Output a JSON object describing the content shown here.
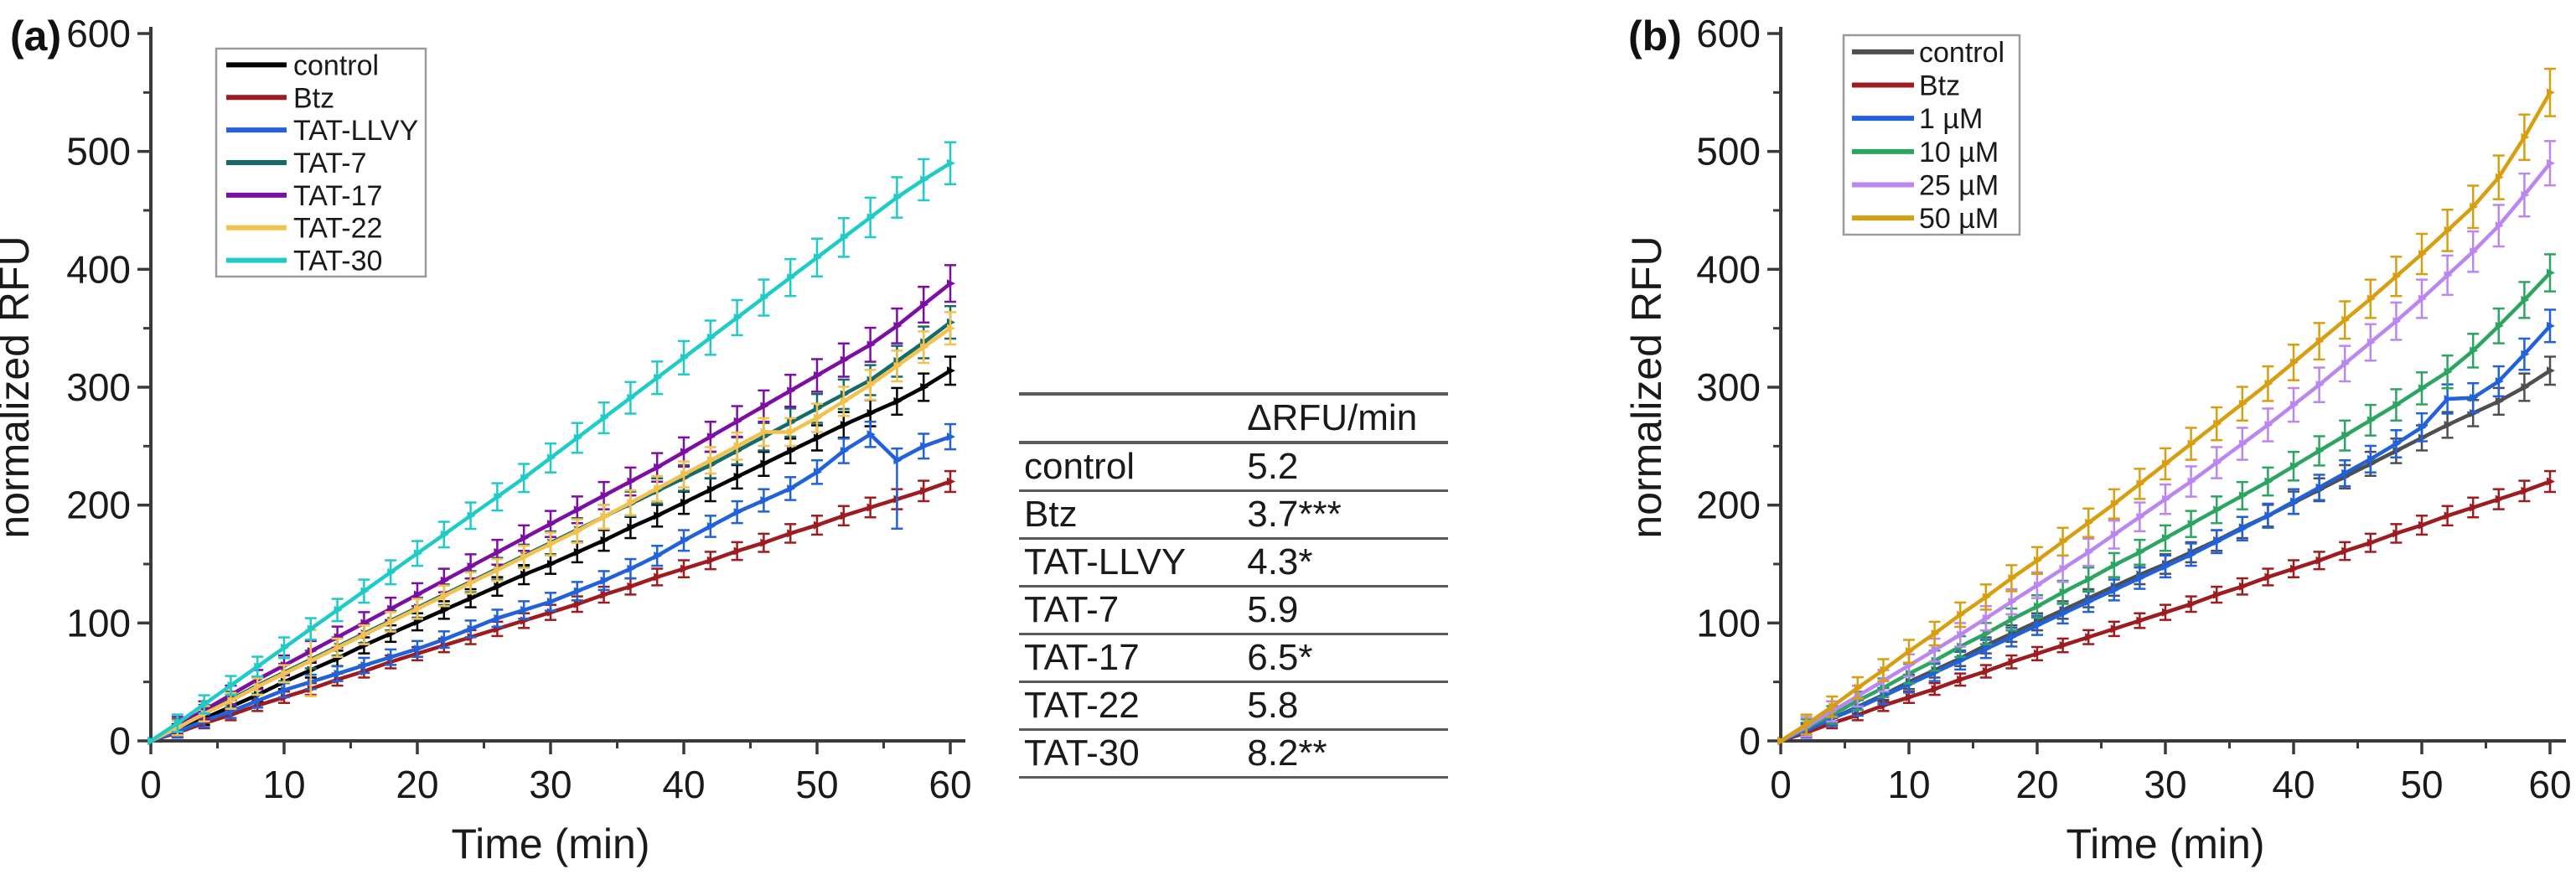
{
  "style": {
    "background": "#ffffff",
    "axis_color": "#3a3a3a",
    "text_color": "#1a1a1a",
    "legend_border": "#9a9a9a",
    "table_line_color": "#5a5a5a",
    "table_header_bg": "#e4e4e4"
  },
  "table": {
    "header": [
      "",
      "ΔRFU/min"
    ],
    "rows": [
      [
        "control",
        "5.2"
      ],
      [
        "Btz",
        "3.7***"
      ],
      [
        "TAT-LLVY",
        "4.3*"
      ],
      [
        "TAT-7",
        "5.9"
      ],
      [
        "TAT-17",
        "6.5*"
      ],
      [
        "TAT-22",
        "5.8"
      ],
      [
        "TAT-30",
        "8.2**"
      ]
    ]
  },
  "chart_data": [
    {
      "type": "line",
      "panel_label": "(a)",
      "title": "",
      "xlabel": "Time (min)",
      "ylabel": "normalized RFU",
      "xlim": [
        0,
        60
      ],
      "ylim": [
        0,
        600
      ],
      "x_ticks": [
        0,
        10,
        20,
        30,
        40,
        50,
        60
      ],
      "y_ticks": [
        0,
        100,
        200,
        300,
        400,
        500,
        600
      ],
      "x_minor_ticks": [
        5,
        15,
        25,
        35,
        45,
        55
      ],
      "y_minor_ticks": [
        50,
        150,
        250,
        350,
        450,
        550
      ],
      "grid": false,
      "legend_position": "top-left-inside",
      "x": [
        0,
        2,
        4,
        6,
        8,
        10,
        12,
        14,
        16,
        18,
        20,
        22,
        24,
        26,
        28,
        30,
        32,
        34,
        36,
        38,
        40,
        42,
        44,
        46,
        48,
        50,
        52,
        54,
        56,
        58,
        60
      ],
      "series": [
        {
          "name": "control",
          "color": "#000000",
          "err_base": 5,
          "values": [
            0,
            9,
            19,
            29,
            39,
            50,
            60,
            70,
            81,
            91,
            101,
            111,
            121,
            131,
            141,
            150,
            160,
            170,
            181,
            191,
            202,
            213,
            224,
            235,
            246,
            257,
            268,
            278,
            288,
            300,
            314
          ]
        },
        {
          "name": "Btz",
          "color": "#9e1c20",
          "err_base": 4,
          "values": [
            0,
            7,
            15,
            22,
            30,
            37,
            44,
            52,
            59,
            67,
            74,
            81,
            88,
            95,
            102,
            109,
            116,
            124,
            131,
            139,
            146,
            153,
            161,
            168,
            176,
            183,
            191,
            198,
            205,
            212,
            220
          ]
        },
        {
          "name": "TAT-LLVY",
          "color": "#2161d9",
          "err_base": 5,
          "err_overrides": {
            "28": [
              58,
              10
            ]
          },
          "values": [
            0,
            8,
            17,
            25,
            34,
            43,
            50,
            57,
            64,
            71,
            78,
            86,
            95,
            104,
            111,
            118,
            127,
            136,
            146,
            157,
            170,
            182,
            194,
            204,
            214,
            228,
            246,
            260,
            238,
            250,
            258
          ]
        },
        {
          "name": "TAT-7",
          "color": "#156a6a",
          "err_base": 6,
          "values": [
            0,
            12,
            24,
            35,
            47,
            58,
            69,
            80,
            91,
            102,
            113,
            124,
            135,
            146,
            157,
            168,
            179,
            190,
            201,
            212,
            223,
            234,
            246,
            258,
            270,
            282,
            294,
            306,
            322,
            338,
            355
          ]
        },
        {
          "name": "TAT-17",
          "color": "#7c0ea3",
          "err_base": 7,
          "values": [
            0,
            13,
            26,
            39,
            52,
            64,
            76,
            88,
            100,
            112,
            124,
            136,
            148,
            160,
            172,
            184,
            196,
            208,
            220,
            232,
            245,
            258,
            271,
            284,
            297,
            310,
            323,
            336,
            352,
            370,
            388
          ]
        },
        {
          "name": "TAT-22",
          "color": "#f2c14e",
          "err_base": 6,
          "err_overrides": {
            "6": [
              30,
              26
            ]
          },
          "values": [
            0,
            11,
            23,
            34,
            46,
            57,
            68,
            79,
            90,
            101,
            112,
            123,
            134,
            145,
            156,
            167,
            178,
            190,
            202,
            214,
            226,
            238,
            250,
            262,
            262,
            274,
            288,
            302,
            318,
            334,
            350
          ]
        },
        {
          "name": "TAT-30",
          "color": "#1ecbc6",
          "err_base": 7,
          "values": [
            0,
            15,
            31,
            47,
            63,
            79,
            95,
            111,
            127,
            143,
            159,
            175,
            191,
            207,
            223,
            240,
            257,
            274,
            291,
            308,
            325,
            342,
            359,
            376,
            393,
            410,
            427,
            444,
            461,
            476,
            490
          ]
        }
      ]
    },
    {
      "type": "line",
      "panel_label": "(b)",
      "title": "",
      "xlabel": "Time (min)",
      "ylabel": "normalized RFU",
      "xlim": [
        0,
        60
      ],
      "ylim": [
        0,
        600
      ],
      "x_ticks": [
        0,
        10,
        20,
        30,
        40,
        50,
        60
      ],
      "y_ticks": [
        0,
        100,
        200,
        300,
        400,
        500,
        600
      ],
      "x_minor_ticks": [
        5,
        15,
        25,
        35,
        45,
        55
      ],
      "y_minor_ticks": [
        50,
        150,
        250,
        350,
        450,
        550
      ],
      "grid": false,
      "legend_position": "top-left-inside",
      "x": [
        0,
        2,
        4,
        6,
        8,
        10,
        12,
        14,
        16,
        18,
        20,
        22,
        24,
        26,
        28,
        30,
        32,
        34,
        36,
        38,
        40,
        42,
        44,
        46,
        48,
        50,
        52,
        54,
        56,
        58,
        60
      ],
      "series": [
        {
          "name": "control",
          "color": "#4f4f4f",
          "err_base": 5,
          "values": [
            0,
            9,
            19,
            29,
            39,
            50,
            60,
            70,
            81,
            91,
            101,
            111,
            121,
            131,
            141,
            150,
            160,
            170,
            181,
            191,
            202,
            213,
            224,
            235,
            246,
            257,
            268,
            278,
            288,
            300,
            314
          ]
        },
        {
          "name": "Btz",
          "color": "#9e1c20",
          "err_base": 4,
          "values": [
            0,
            7,
            15,
            22,
            30,
            37,
            44,
            52,
            59,
            67,
            74,
            81,
            88,
            95,
            102,
            109,
            116,
            124,
            131,
            139,
            146,
            153,
            161,
            168,
            176,
            183,
            191,
            198,
            205,
            212,
            220
          ]
        },
        {
          "name": "1 µM",
          "color": "#2161d9",
          "err_base": 6,
          "values": [
            0,
            9,
            19,
            28,
            38,
            48,
            58,
            68,
            78,
            88,
            98,
            108,
            118,
            128,
            138,
            148,
            158,
            169,
            180,
            191,
            203,
            215,
            227,
            239,
            252,
            266,
            290,
            291,
            305,
            328,
            352
          ]
        },
        {
          "name": "10 µM",
          "color": "#2ba55f",
          "err_base": 7,
          "values": [
            0,
            11,
            22,
            34,
            45,
            57,
            68,
            80,
            91,
            103,
            114,
            126,
            137,
            149,
            160,
            172,
            184,
            196,
            208,
            220,
            233,
            246,
            259,
            272,
            285,
            299,
            313,
            331,
            352,
            374,
            397
          ]
        },
        {
          "name": "25 µM",
          "color": "#bb86f0",
          "err_base": 8,
          "values": [
            0,
            12,
            25,
            38,
            51,
            64,
            77,
            90,
            104,
            118,
            132,
            146,
            160,
            175,
            190,
            205,
            220,
            236,
            252,
            268,
            285,
            302,
            320,
            338,
            356,
            375,
            395,
            415,
            437,
            463,
            490
          ]
        },
        {
          "name": "50 µM",
          "color": "#d79e10",
          "err_base": 8,
          "values": [
            0,
            14,
            29,
            45,
            60,
            76,
            91,
            107,
            122,
            138,
            153,
            169,
            185,
            201,
            218,
            235,
            252,
            269,
            286,
            303,
            321,
            339,
            357,
            375,
            394,
            413,
            433,
            453,
            478,
            512,
            550
          ]
        }
      ]
    }
  ]
}
